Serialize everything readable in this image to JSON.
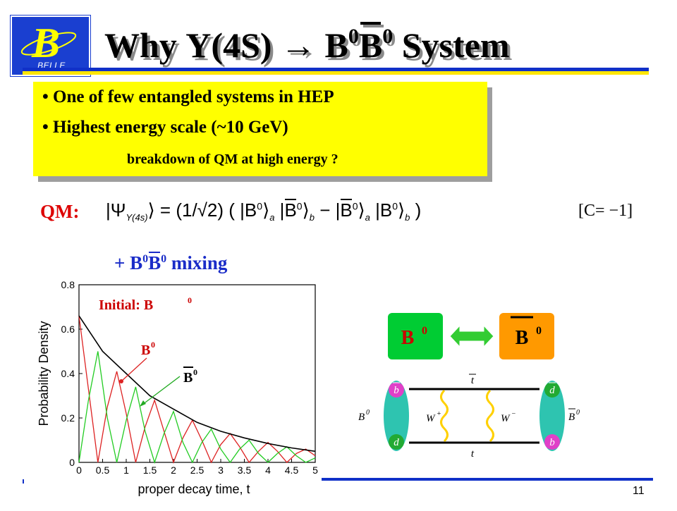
{
  "logo": {
    "letter": "B",
    "caption": "BELLE"
  },
  "title": {
    "text": "Why Υ(4S) → B",
    "sup1": "0",
    "bbar": "B",
    "sup2": "0",
    "tail": " System"
  },
  "bullets": [
    "• One of few entangled systems in HEP",
    "• Highest energy scale (~10 GeV)"
  ],
  "bullet_note": "breakdown of QM at high energy ?",
  "qm": {
    "label": "QM:",
    "equation": {
      "psi": "|Ψ",
      "psi_sub": "Υ(4s)",
      "rest1": "⟩ = (1/√2) ( |B",
      "b_sub_a": "a",
      "b_sub_b": "b",
      "sup0": "0"
    },
    "cparity": "[C= −1]"
  },
  "mixing": {
    "prefix": "+ B",
    "sup1": "0",
    "bbar": "B",
    "sup2": "0",
    "suffix": " mixing"
  },
  "chart_data": {
    "type": "line",
    "xlabel": "proper decay time, t",
    "ylabel": "Probability Density",
    "xlim": [
      0,
      5
    ],
    "ylim": [
      0,
      0.8
    ],
    "xticks": [
      "0",
      "0.5",
      "1",
      "1.5",
      "2",
      "2.5",
      "3",
      "3.5",
      "4",
      "4.5",
      "5"
    ],
    "yticks": [
      "0",
      "0.2",
      "0.4",
      "0.6",
      "0.8"
    ],
    "annotation": "Initial: B",
    "annotation_sup": "0",
    "series": [
      {
        "name": "envelope",
        "color": "#000000",
        "x": [
          0,
          0.5,
          1,
          1.5,
          2,
          2.5,
          3,
          3.5,
          4,
          4.5,
          5
        ],
        "y": [
          0.66,
          0.5,
          0.4,
          0.3,
          0.24,
          0.18,
          0.14,
          0.11,
          0.085,
          0.065,
          0.05
        ]
      },
      {
        "name": "B0",
        "color": "#dd2222",
        "x": [
          0,
          0.2,
          0.4,
          0.6,
          0.8,
          1.0,
          1.2,
          1.4,
          1.6,
          1.8,
          2.0,
          2.2,
          2.4,
          2.6,
          2.8,
          3.0,
          3.2,
          3.4,
          3.6,
          3.8,
          4.0,
          4.2,
          4.4,
          4.6,
          4.8,
          5.0
        ],
        "y": [
          0.66,
          0.33,
          0.0,
          0.25,
          0.41,
          0.22,
          0.0,
          0.16,
          0.28,
          0.14,
          0.0,
          0.11,
          0.19,
          0.1,
          0.0,
          0.08,
          0.13,
          0.07,
          0.0,
          0.05,
          0.09,
          0.05,
          0.0,
          0.04,
          0.06,
          0.03
        ]
      },
      {
        "name": "B0bar",
        "color": "#22cc22",
        "x": [
          0,
          0.2,
          0.4,
          0.6,
          0.8,
          1.0,
          1.2,
          1.4,
          1.6,
          1.8,
          2.0,
          2.2,
          2.4,
          2.6,
          2.8,
          3.0,
          3.2,
          3.4,
          3.6,
          3.8,
          4.0,
          4.2,
          4.4,
          4.6,
          4.8,
          5.0
        ],
        "y": [
          0.0,
          0.28,
          0.5,
          0.2,
          0.0,
          0.19,
          0.34,
          0.14,
          0.0,
          0.13,
          0.23,
          0.09,
          0.0,
          0.09,
          0.15,
          0.06,
          0.0,
          0.06,
          0.1,
          0.04,
          0.0,
          0.04,
          0.07,
          0.03,
          0.0,
          0.02
        ]
      }
    ],
    "labels": {
      "b0": "B",
      "b0bar": "B",
      "sup": "0"
    }
  },
  "diagram": {
    "left_box": "B",
    "right_box": "B",
    "sup": "0",
    "left_meson": "B",
    "right_meson": "B",
    "quark_top_left": "b",
    "quark_bottom_left": "d",
    "quark_top_right": "d",
    "quark_bottom_right": "b",
    "top_quark": "t",
    "bottom_quark": "t",
    "w_left": "W",
    "w_left_sup": "+",
    "w_right": "W",
    "w_right_sup": "−",
    "colors": {
      "box_left": "#00cc33",
      "box_right": "#ff9900",
      "blob": "#2ec4b0",
      "quark_b": "#e040c8",
      "quark_d": "#22aa33",
      "wiggle": "#ffd000"
    }
  },
  "footer": {
    "page": "11"
  }
}
